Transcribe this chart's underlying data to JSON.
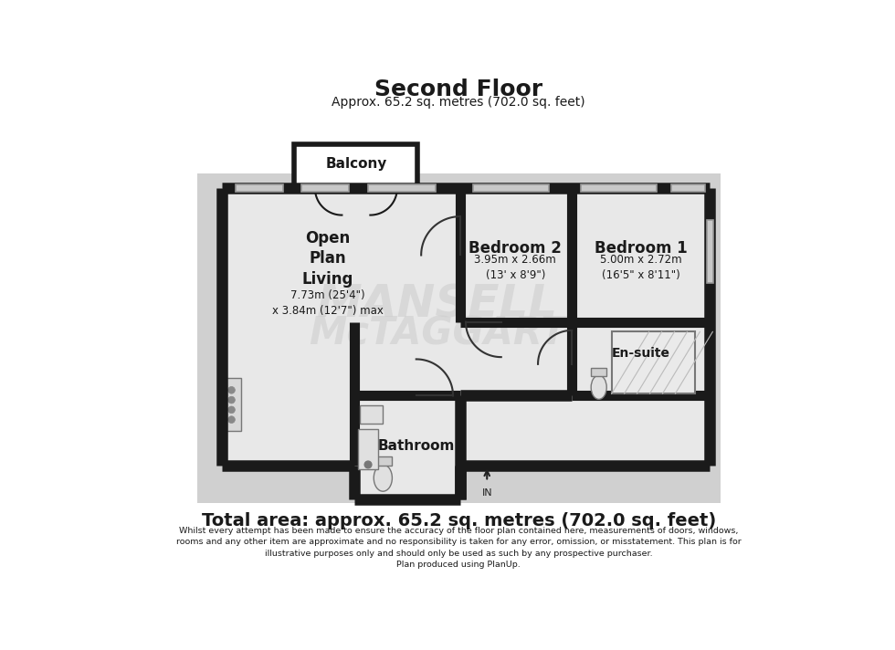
{
  "title": "Second Floor",
  "subtitle": "Approx. 65.2 sq. metres (702.0 sq. feet)",
  "total_area": "Total area: approx. 65.2 sq. metres (702.0 sq. feet)",
  "disclaimer_lines": [
    "Whilst every attempt has been made to ensure the accuracy of the floor plan contained here, measurements of doors, windows,",
    "rooms and any other item are approximate and no responsibility is taken for any error, omission, or misstatement. This plan is for",
    "illustrative purposes only and should only be used as such by any prospective purchaser.",
    "Plan produced using PlanUp."
  ],
  "bg_color": "#d0d0d0",
  "floor_color": "#e8e8e8",
  "wall_color": "#1a1a1a",
  "window_color": "#aaaaaa",
  "watermark_line1": "MANSELL",
  "watermark_line2": "McTAGGART"
}
